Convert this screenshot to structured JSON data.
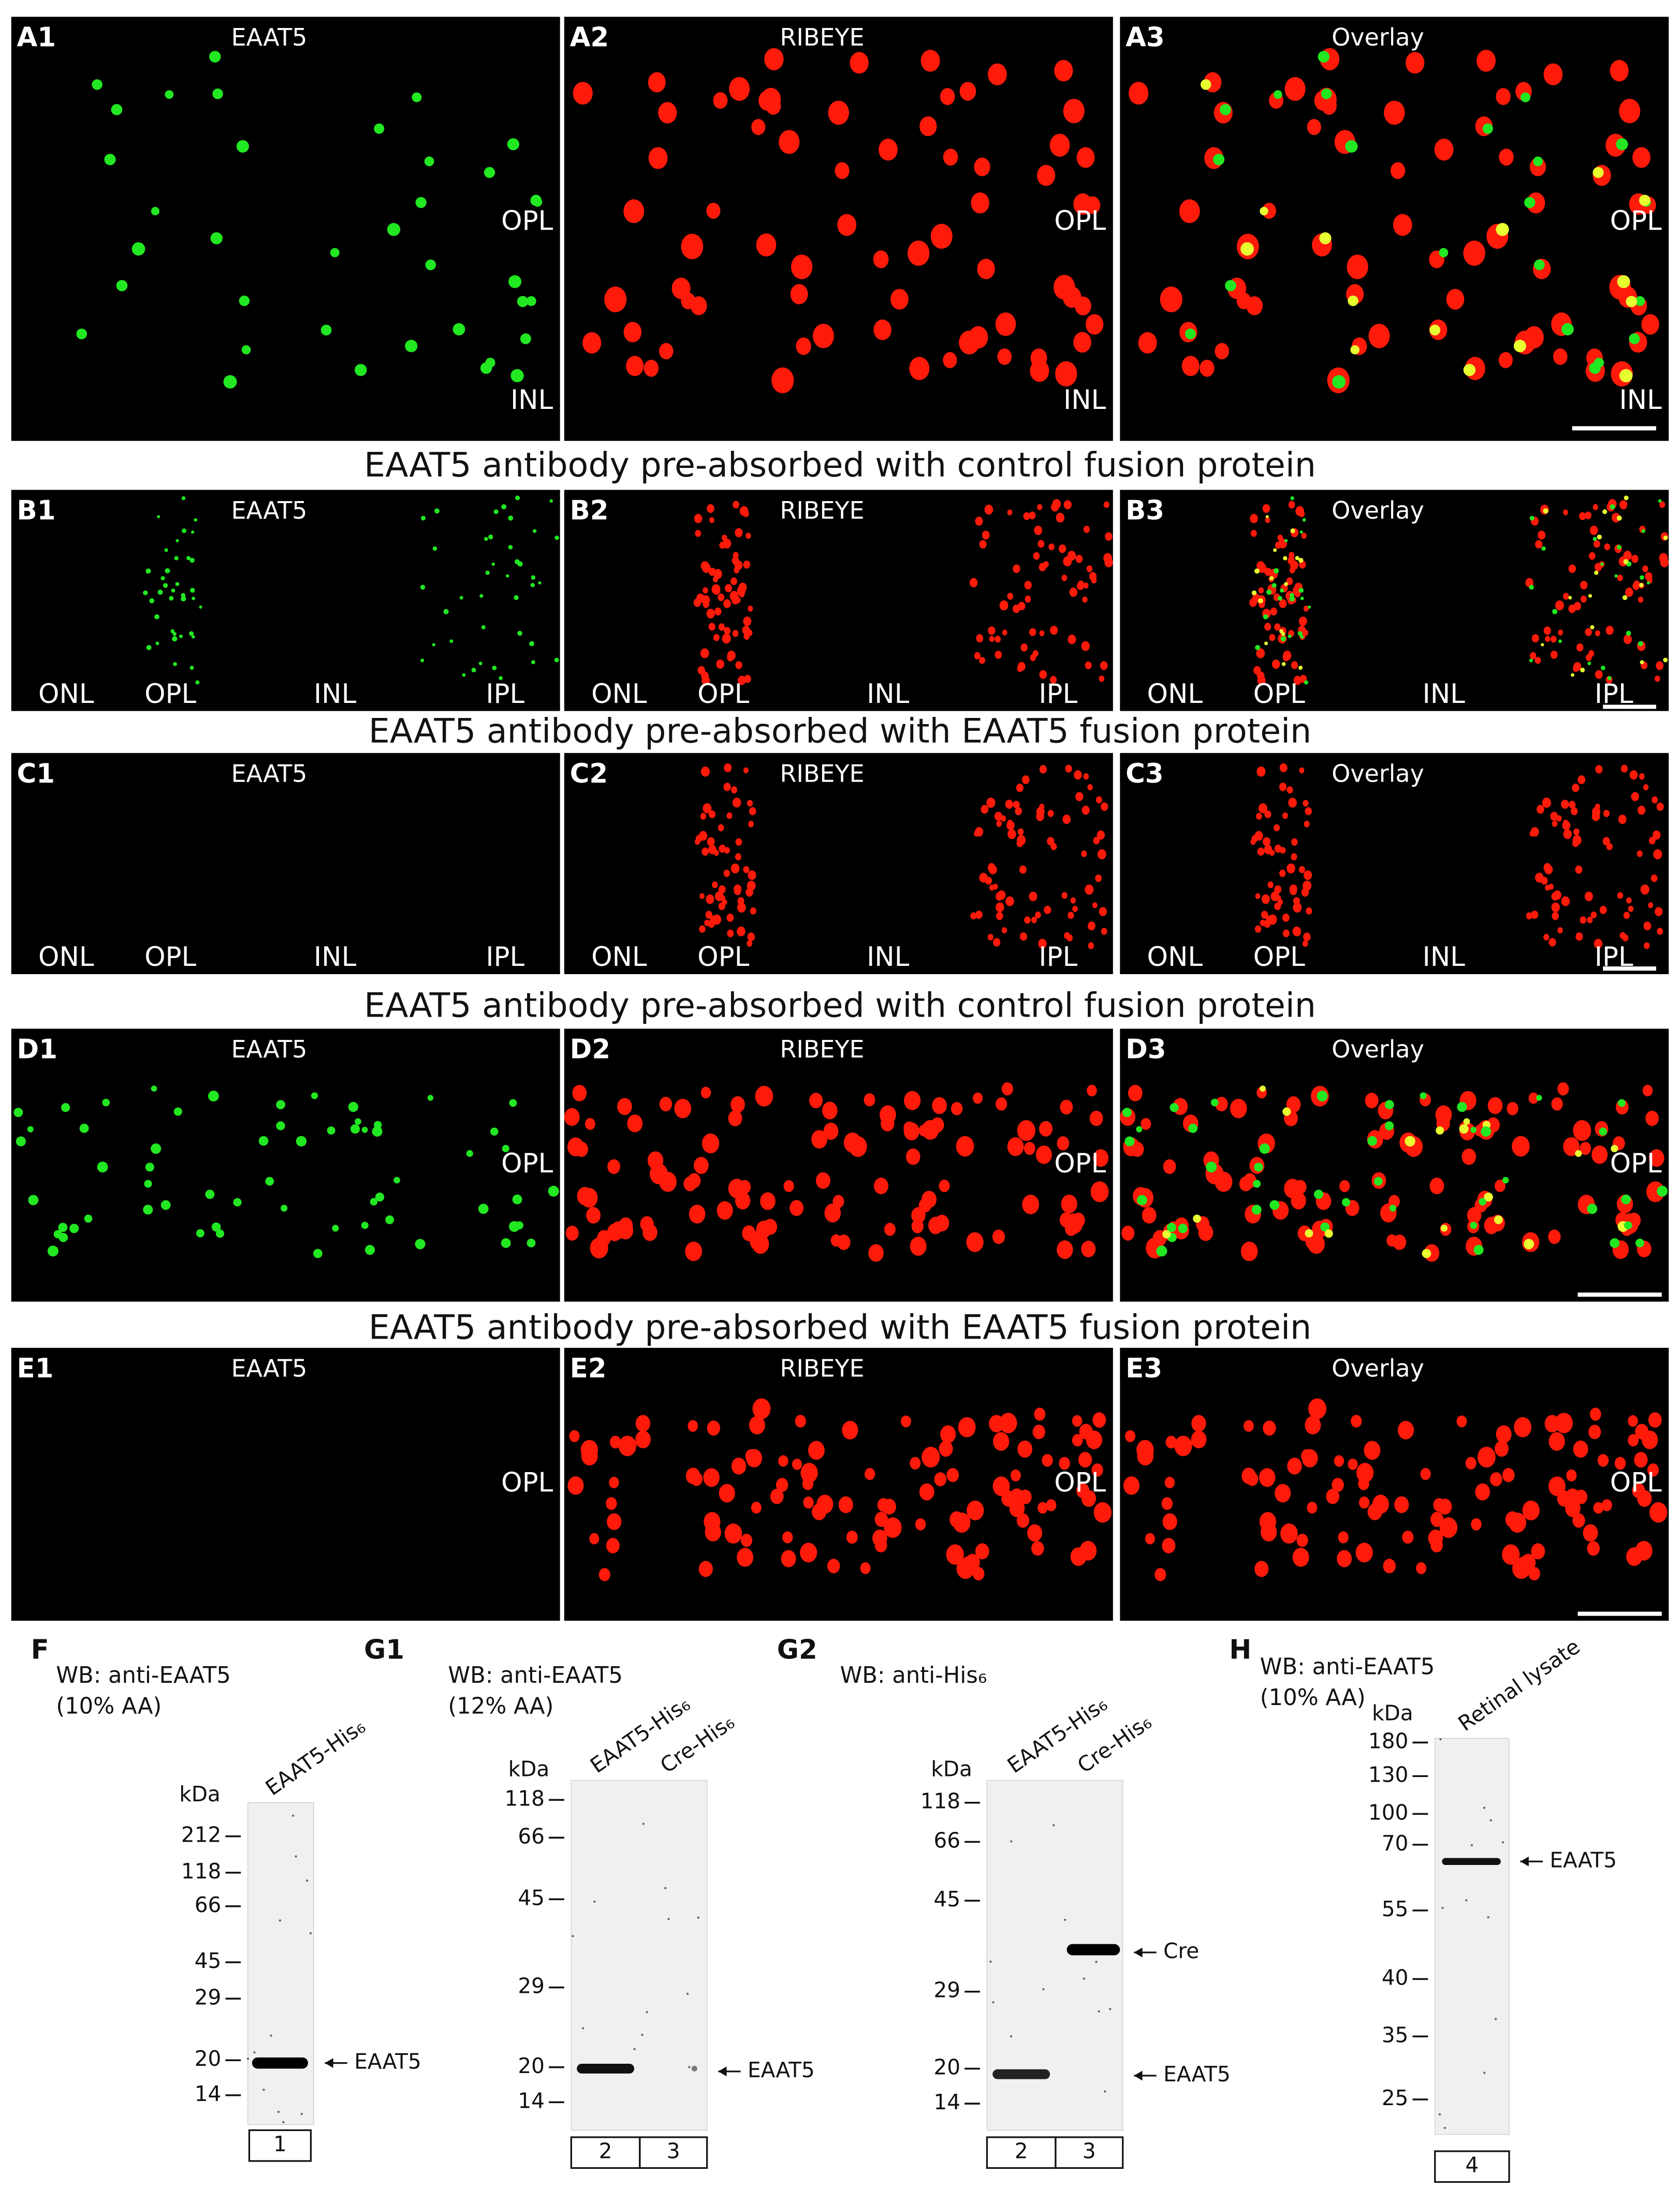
{
  "rows": [
    {
      "panels": [
        {
          "label": "A1",
          "channel": "EAAT5",
          "layers": [
            "OPL",
            "INL"
          ]
        },
        {
          "label": "A2",
          "channel": "RIBEYE",
          "layers": [
            "OPL",
            "INL"
          ]
        },
        {
          "label": "A3",
          "channel": "Overlay",
          "layers": [
            "OPL",
            "INL"
          ]
        }
      ]
    },
    {
      "caption": "EAAT5 antibody pre-absorbed with control fusion protein",
      "panels": [
        {
          "label": "B1",
          "channel": "EAAT5",
          "layers": [
            "ONL",
            "OPL",
            "INL",
            "IPL"
          ]
        },
        {
          "label": "B2",
          "channel": "RIBEYE",
          "layers": [
            "ONL",
            "OPL",
            "INL",
            "IPL"
          ]
        },
        {
          "label": "B3",
          "channel": "Overlay",
          "layers": [
            "ONL",
            "OPL",
            "INL",
            "IPL"
          ]
        }
      ]
    },
    {
      "caption": "EAAT5 antibody pre-absorbed with EAAT5 fusion protein",
      "panels": [
        {
          "label": "C1",
          "channel": "EAAT5",
          "layers": [
            "ONL",
            "OPL",
            "INL",
            "IPL"
          ]
        },
        {
          "label": "C2",
          "channel": "RIBEYE",
          "layers": [
            "ONL",
            "OPL",
            "INL",
            "IPL"
          ]
        },
        {
          "label": "C3",
          "channel": "Overlay",
          "layers": [
            "ONL",
            "OPL",
            "INL",
            "IPL"
          ]
        }
      ]
    },
    {
      "caption": "EAAT5 antibody pre-absorbed with control fusion protein",
      "panels": [
        {
          "label": "D1",
          "channel": "EAAT5",
          "layers": [
            "OPL"
          ]
        },
        {
          "label": "D2",
          "channel": "RIBEYE",
          "layers": [
            "OPL"
          ]
        },
        {
          "label": "D3",
          "channel": "Overlay",
          "layers": [
            "OPL"
          ]
        }
      ]
    },
    {
      "caption": "EAAT5 antibody pre-absorbed with EAAT5 fusion protein",
      "panels": [
        {
          "label": "E1",
          "channel": "EAAT5",
          "layers": [
            "OPL"
          ]
        },
        {
          "label": "E2",
          "channel": "RIBEYE",
          "layers": [
            "OPL"
          ]
        },
        {
          "label": "E3",
          "channel": "Overlay",
          "layers": [
            "OPL"
          ]
        }
      ]
    }
  ],
  "blots": [
    {
      "label": "F",
      "title": [
        "WB: anti-EAAT5",
        "(10% AA)"
      ],
      "unit": "kDa",
      "markers": [
        212,
        118,
        66,
        45,
        29,
        20,
        14
      ],
      "lanes": [
        "EAAT5-His₆"
      ],
      "lane_numbers": [
        "1"
      ],
      "bands": [
        "EAAT5"
      ]
    },
    {
      "label": "G1",
      "title": [
        "WB: anti-EAAT5",
        "(12% AA)"
      ],
      "unit": "kDa",
      "markers": [
        118,
        66,
        45,
        29,
        20,
        14
      ],
      "lanes": [
        "EAAT5-His₆",
        "Cre-His₆"
      ],
      "lane_numbers": [
        "2",
        "3"
      ],
      "bands": [
        "EAAT5"
      ]
    },
    {
      "label": "G2",
      "title": [
        "WB: anti-His₆"
      ],
      "unit": "kDa",
      "markers": [
        118,
        66,
        45,
        29,
        20,
        14
      ],
      "lanes": [
        "EAAT5-His₆",
        "Cre-His₆"
      ],
      "lane_numbers": [
        "2",
        "3"
      ],
      "bands": [
        "Cre",
        "EAAT5"
      ]
    },
    {
      "label": "H",
      "title": [
        "WB: anti-EAAT5",
        "(10% AA)"
      ],
      "unit": "kDa",
      "markers": [
        180,
        130,
        100,
        70,
        55,
        40,
        35,
        25
      ],
      "lanes": [
        "Retinal lysate"
      ],
      "lane_numbers": [
        "4"
      ],
      "bands": [
        "EAAT5"
      ]
    }
  ]
}
